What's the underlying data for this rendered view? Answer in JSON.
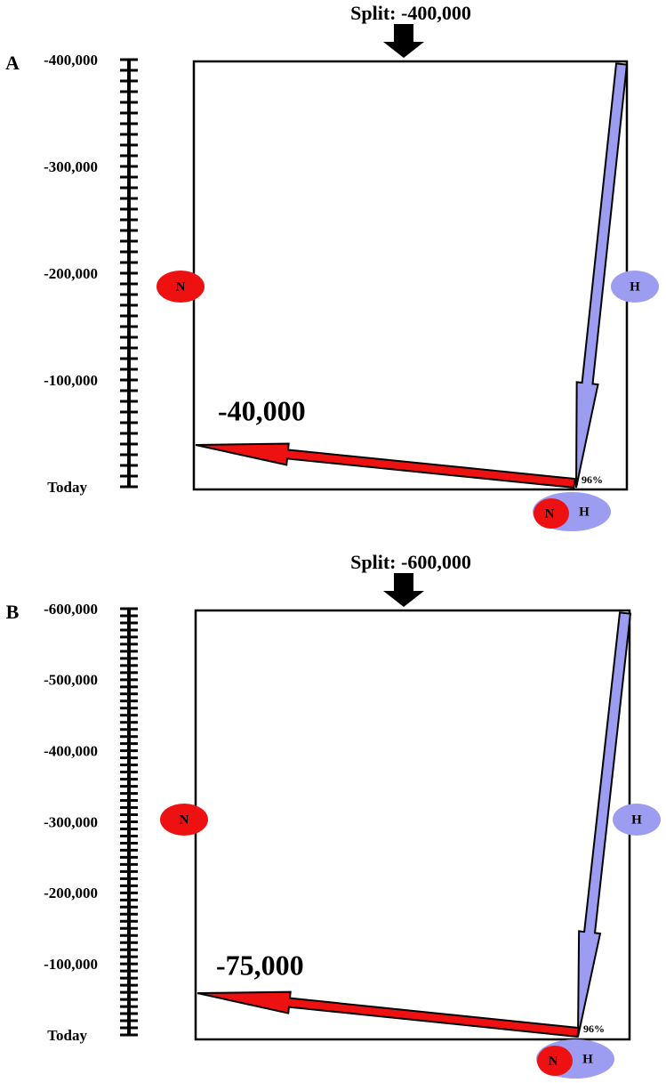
{
  "panels": [
    {
      "label": "A",
      "split": "Split: -400,000",
      "scale_labels": [
        "-400,000",
        "-300,000",
        "-200,000",
        "-100,000",
        "Today"
      ],
      "left_node": "N",
      "right_node": "H",
      "event": "-40,000",
      "percent": "96%",
      "merged": [
        "N",
        "H"
      ]
    },
    {
      "label": "B",
      "split": "Split: -600,000",
      "scale_labels": [
        "-600,000",
        "-500,000",
        "-400,000",
        "-300,000",
        "-200,000",
        "-100,000",
        "Today"
      ],
      "left_node": "N",
      "right_node": "H",
      "event": "-75,000",
      "percent": "96%",
      "merged": [
        "N",
        "H"
      ]
    }
  ]
}
